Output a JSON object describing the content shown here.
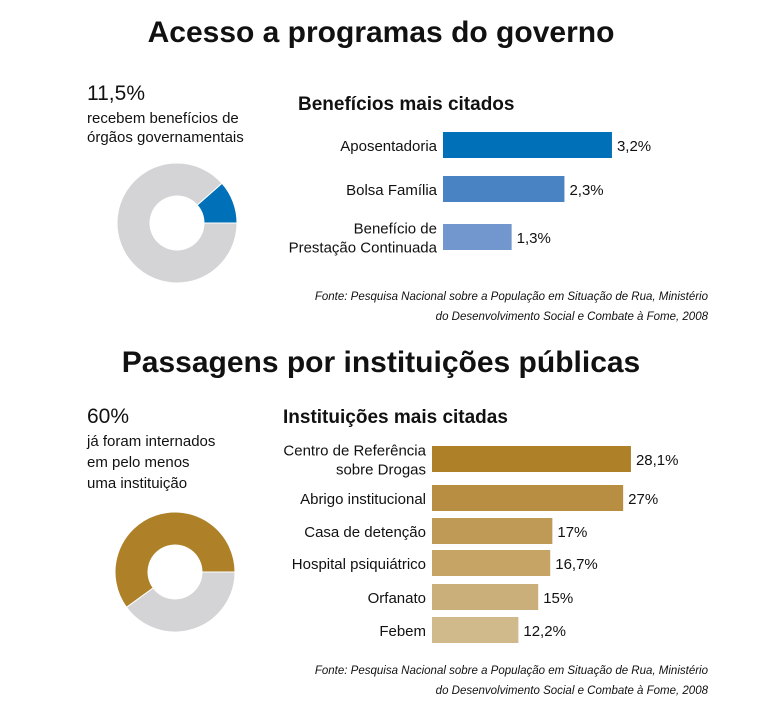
{
  "chart_data": [
    {
      "type": "bar",
      "section_title": "Acesso a programas do governo",
      "headline_value": "11,5%",
      "headline_text": [
        "recebem benefícios de",
        "órgãos governamentais"
      ],
      "donut": {
        "value": 11.5,
        "color": "#0070B8",
        "rest_color": "#D4D4D6"
      },
      "title": "Benefícios mais citados",
      "categories": [
        [
          "Aposentadoria"
        ],
        [
          "Bolsa Família"
        ],
        [
          "Benefício de",
          "Prestação Continuada"
        ]
      ],
      "values": [
        3.2,
        2.3,
        1.3
      ],
      "value_labels": [
        "3,2%",
        "2,3%",
        "1,3%"
      ],
      "colors": [
        "#0070B8",
        "#4A83C4",
        "#7197CE"
      ],
      "source": [
        "Fonte: Pesquisa Nacional sobre a População em Situação de Rua, Ministério",
        "do Desenvolvimento Social e Combate à Fome, 2008"
      ]
    },
    {
      "type": "bar",
      "section_title": "Passagens por instituições públicas",
      "headline_value": "60%",
      "headline_text": [
        "já foram internados",
        "em pelo menos",
        "uma instituição"
      ],
      "donut": {
        "value": 60,
        "color": "#AE8128",
        "rest_color": "#D4D4D6"
      },
      "title": "Instituições mais citadas",
      "categories": [
        [
          "Centro de Referência",
          "sobre Drogas"
        ],
        [
          "Abrigo institucional"
        ],
        [
          "Casa de detenção"
        ],
        [
          "Hospital psiquiátrico"
        ],
        [
          "Orfanato"
        ],
        [
          "Febem"
        ]
      ],
      "values": [
        28.1,
        27,
        17,
        16.7,
        15,
        12.2
      ],
      "value_labels": [
        "28,1%",
        "27%",
        "17%",
        "16,7%",
        "15%",
        "12,2%"
      ],
      "colors": [
        "#AE8128",
        "#B78E42",
        "#BF9A57",
        "#C5A466",
        "#CBAF7A",
        "#D0B98B"
      ],
      "source": [
        "Fonte: Pesquisa Nacional  sobre a População em Situação de Rua, Ministério",
        "do Desenvolvimento Social e Combate à Fome, 2008"
      ]
    }
  ]
}
